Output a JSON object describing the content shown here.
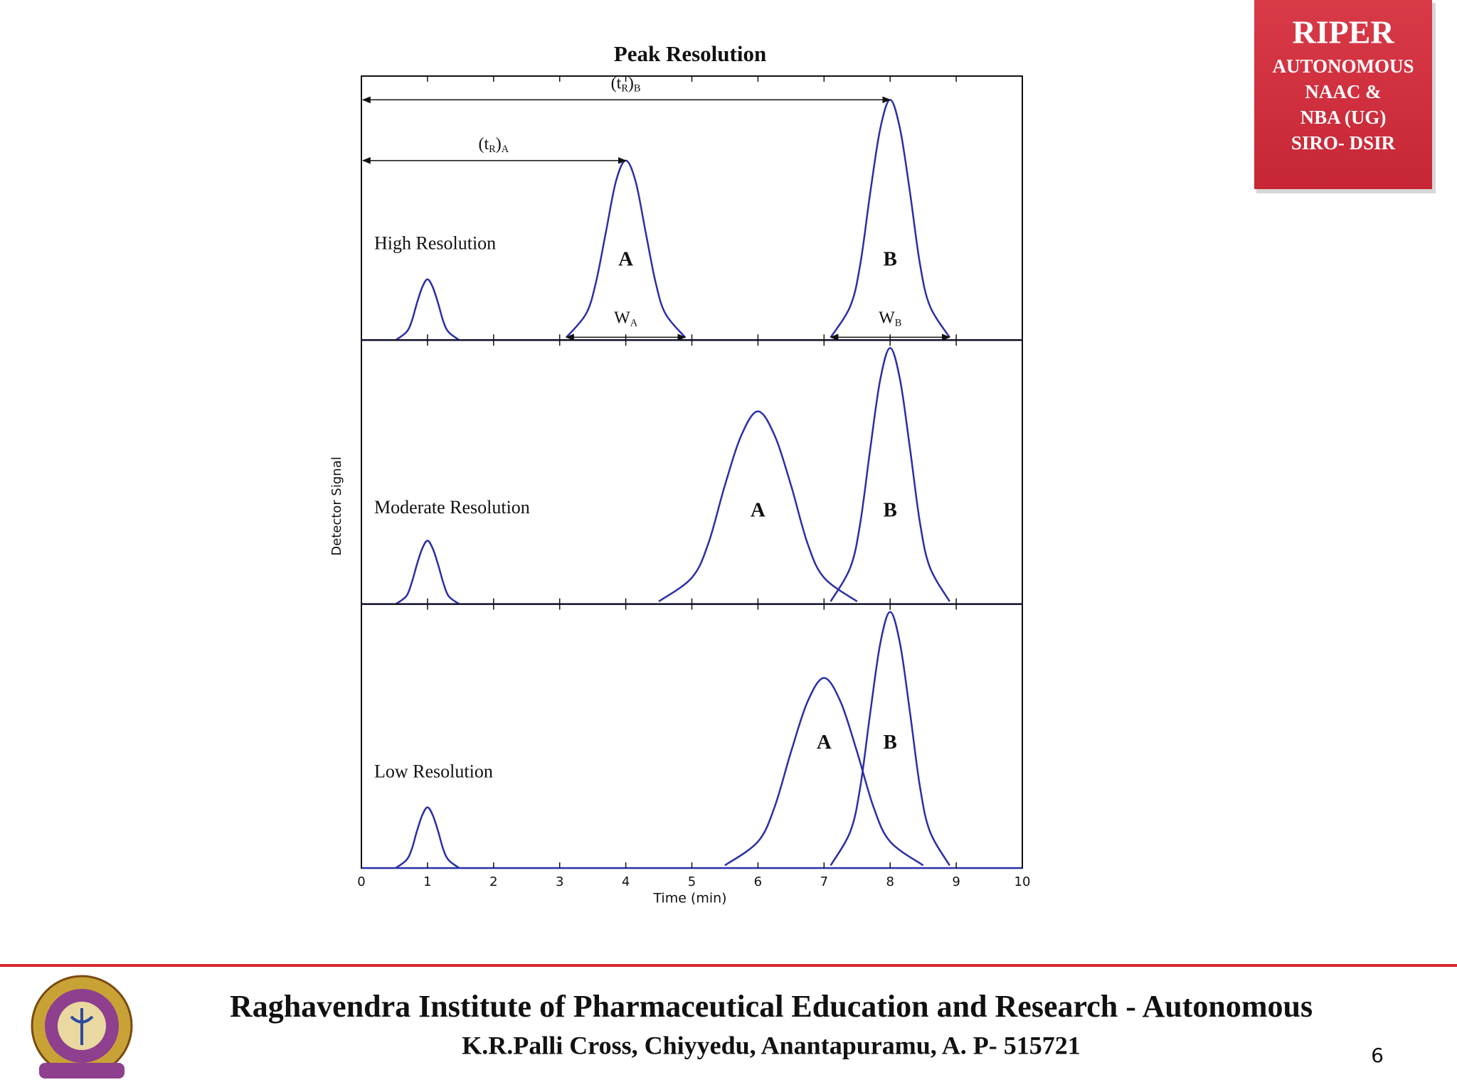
{
  "chart_data": {
    "type": "line",
    "title": "Peak Resolution",
    "x_label": "Time (min)",
    "y_label": "Detector Signal",
    "xlim": [
      0,
      10
    ],
    "xticks": [
      0,
      1,
      2,
      3,
      4,
      5,
      6,
      7,
      8,
      9,
      10
    ],
    "color": "#2b2fa5",
    "panels": [
      {
        "label": "High Resolution",
        "ylim": [
          0,
          1
        ],
        "series": [
          {
            "x": [
              0.52,
              0.68,
              0.76,
              0.84,
              0.92,
              1,
              1.08,
              1.16,
              1.24,
              1.32,
              1.48
            ],
            "values": [
              0,
              0.03,
              0.07,
              0.14,
              0.2,
              0.23,
              0.2,
              0.14,
              0.07,
              0.03,
              0
            ]
          },
          {
            "name": "A",
            "retention_label": [
              "(t",
              "R",
              ")",
              "A"
            ],
            "width_label": [
              "W",
              "A"
            ],
            "x": [
              3.1,
              3.4,
              3.55,
              3.7,
              3.85,
              4,
              4.15,
              4.3,
              4.45,
              4.6,
              4.9
            ],
            "values": [
              0.01,
              0.1,
              0.22,
              0.41,
              0.6,
              0.68,
              0.6,
              0.41,
              0.22,
              0.1,
              0.01
            ]
          },
          {
            "name": "B",
            "retention_label": [
              "(t",
              "R",
              ")",
              "B"
            ],
            "width_label": [
              "W",
              "B"
            ],
            "x": [
              7.1,
              7.4,
              7.55,
              7.7,
              7.85,
              8,
              8.15,
              8.3,
              8.45,
              8.6,
              8.9
            ],
            "values": [
              0.01,
              0.13,
              0.29,
              0.56,
              0.8,
              0.91,
              0.8,
              0.56,
              0.29,
              0.13,
              0.01
            ]
          }
        ]
      },
      {
        "label": "Moderate Resolution",
        "ylim": [
          0,
          1
        ],
        "series": [
          {
            "x": [
              0.52,
              0.68,
              0.76,
              0.84,
              0.92,
              1,
              1.08,
              1.16,
              1.24,
              1.32,
              1.48
            ],
            "values": [
              0,
              0.03,
              0.08,
              0.15,
              0.21,
              0.24,
              0.21,
              0.15,
              0.08,
              0.03,
              0
            ]
          },
          {
            "name": "A",
            "x": [
              4.5,
              5,
              5.25,
              5.5,
              5.75,
              6,
              6.25,
              6.5,
              6.75,
              7,
              7.5
            ],
            "values": [
              0.01,
              0.1,
              0.23,
              0.45,
              0.64,
              0.73,
              0.64,
              0.45,
              0.23,
              0.1,
              0.01
            ]
          },
          {
            "name": "B",
            "x": [
              7.1,
              7.4,
              7.55,
              7.7,
              7.85,
              8,
              8.15,
              8.3,
              8.45,
              8.6,
              8.9
            ],
            "values": [
              0.01,
              0.14,
              0.31,
              0.59,
              0.85,
              0.97,
              0.85,
              0.59,
              0.31,
              0.14,
              0.01
            ]
          }
        ]
      },
      {
        "label": "Low Resolution",
        "ylim": [
          0,
          1
        ],
        "series": [
          {
            "x": [
              0.52,
              0.68,
              0.76,
              0.84,
              0.92,
              1,
              1.08,
              1.16,
              1.24,
              1.32,
              1.48
            ],
            "values": [
              0,
              0.03,
              0.07,
              0.14,
              0.2,
              0.23,
              0.2,
              0.14,
              0.07,
              0.03,
              0
            ]
          },
          {
            "name": "A",
            "x": [
              5.5,
              6,
              6.25,
              6.5,
              6.75,
              7,
              7.25,
              7.5,
              7.75,
              8,
              8.5
            ],
            "values": [
              0.01,
              0.1,
              0.23,
              0.44,
              0.63,
              0.72,
              0.63,
              0.44,
              0.23,
              0.1,
              0.01
            ]
          },
          {
            "name": "B",
            "x": [
              7.1,
              7.4,
              7.55,
              7.7,
              7.85,
              8,
              8.15,
              8.3,
              8.45,
              8.6,
              8.9
            ],
            "values": [
              0.01,
              0.14,
              0.31,
              0.59,
              0.85,
              0.97,
              0.85,
              0.59,
              0.31,
              0.14,
              0.01
            ]
          }
        ]
      }
    ]
  },
  "badge": {
    "lines": [
      "RIPER",
      "AUTONOMOUS",
      "NAAC &",
      "NBA (UG)",
      "SIRO- DSIR"
    ]
  },
  "footer": {
    "institute": "Raghavendra Institute of Pharmaceutical Education and Research - Autonomous",
    "address": "K.R.Palli Cross, Chiyyedu, Anantapuramu, A. P- 515721",
    "page": 6
  }
}
